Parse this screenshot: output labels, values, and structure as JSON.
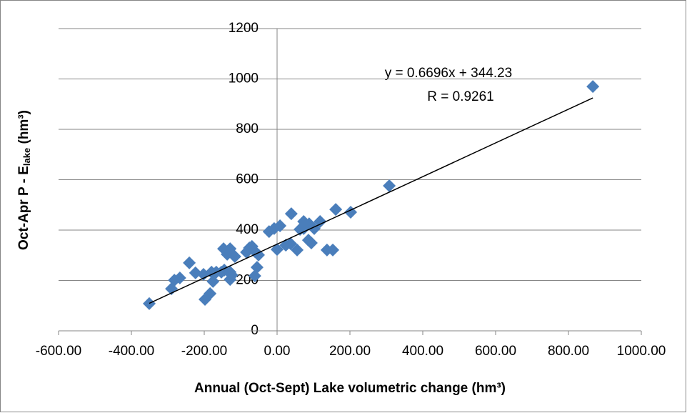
{
  "chart_data": {
    "type": "scatter",
    "x_label": "Annual (Oct-Sept) Lake volumetric change (hm³)",
    "y_label": {
      "main": "Oct-Apr P - E",
      "sub": "lake",
      "unit": " (hm³)"
    },
    "color": "#4a7ebb",
    "grid": true,
    "x": [
      -351,
      -290,
      -282,
      -267,
      -241,
      -224,
      -202,
      -180,
      -184,
      -198,
      -176,
      -167,
      -153,
      -147,
      -137,
      -129,
      -129,
      -124,
      -129,
      -116,
      -145,
      -84,
      -76,
      -69,
      -61,
      -51,
      -55,
      -61,
      -22,
      -8,
      8,
      0,
      24,
      37,
      39,
      55,
      63,
      73,
      73,
      86,
      94,
      88,
      102,
      118,
      137,
      153,
      161,
      202,
      308,
      867
    ],
    "y": [
      108,
      167,
      201,
      210,
      270,
      230,
      224,
      233,
      148,
      125,
      196,
      233,
      233,
      326,
      304,
      326,
      233,
      221,
      204,
      295,
      241,
      312,
      329,
      335,
      315,
      301,
      252,
      218,
      394,
      406,
      417,
      323,
      340,
      346,
      465,
      321,
      403,
      434,
      406,
      360,
      349,
      425,
      406,
      434,
      321,
      321,
      482,
      471,
      576,
      970
    ],
    "xlim": [
      -600,
      1000
    ],
    "ylim": [
      0,
      1200
    ],
    "xticks": [
      {
        "value": -600,
        "label": "-600.00"
      },
      {
        "value": -400,
        "label": "-400.00"
      },
      {
        "value": -200,
        "label": "-200.00"
      },
      {
        "value": 0,
        "label": "0.00"
      },
      {
        "value": 200,
        "label": "200.00"
      },
      {
        "value": 400,
        "label": "400.00"
      },
      {
        "value": 600,
        "label": "600.00"
      },
      {
        "value": 800,
        "label": "800.00"
      },
      {
        "value": 1000,
        "label": "1000.00"
      }
    ],
    "yticks": [
      0,
      200,
      400,
      600,
      800,
      1000,
      1200
    ],
    "trendline": {
      "slope": 0.6696,
      "intercept": 344.23,
      "equation": "y = 0.6696x + 344.23",
      "r_label": "R = 0.9261"
    }
  }
}
